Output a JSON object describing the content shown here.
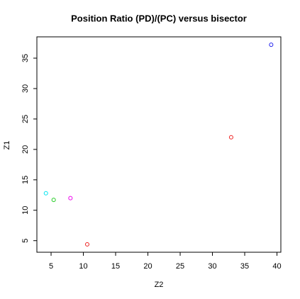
{
  "chart_data": {
    "type": "scatter",
    "title": "Position Ratio (PD)/(PC) versus bisector",
    "xlabel": "Z2",
    "ylabel": "Z1",
    "x": [
      4.2,
      5.4,
      8.0,
      10.6,
      32.9,
      39.1
    ],
    "values": [
      12.8,
      11.7,
      12.0,
      4.4,
      22.0,
      37.2
    ],
    "colors": [
      "#00e5ee",
      "#22cc22",
      "#ee00ee",
      "#ee2222",
      "#ee2222",
      "#2222ee"
    ],
    "xlim": [
      2.8,
      40.6
    ],
    "xticks": [
      5,
      10,
      15,
      20,
      25,
      30,
      35,
      40
    ],
    "ylim": [
      3.1,
      38.5
    ],
    "yticks": [
      5,
      10,
      15,
      20,
      25,
      30,
      35
    ]
  }
}
